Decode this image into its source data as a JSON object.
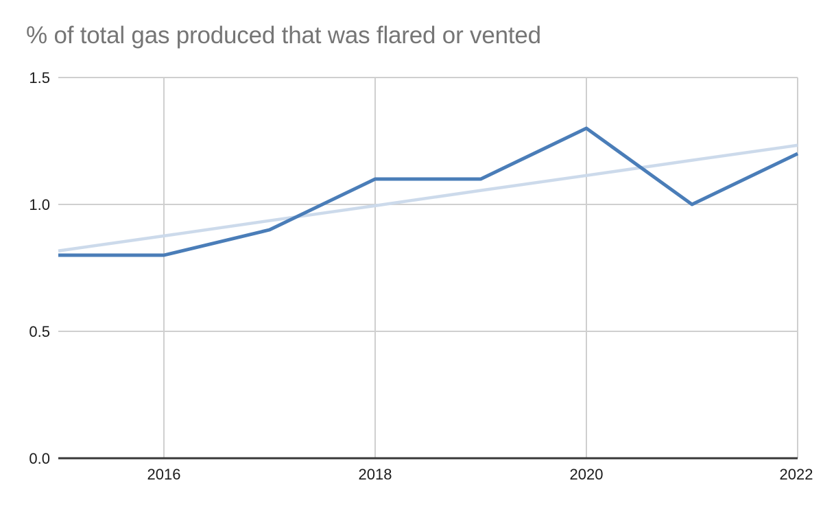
{
  "page": {
    "background": "#ffffff"
  },
  "chart": {
    "title": "% of total gas produced that was flared or vented"
  },
  "chart_data": {
    "type": "line",
    "title": "% of total gas produced that was flared or vented",
    "x": [
      2015,
      2016,
      2017,
      2018,
      2019,
      2020,
      2021,
      2022
    ],
    "series": [
      {
        "name": "% of total gas flared or vented",
        "role": "data",
        "color": "#4a7db8",
        "values": [
          0.8,
          0.8,
          0.9,
          1.1,
          1.1,
          1.3,
          1.0,
          1.2
        ]
      },
      {
        "name": "linear trend",
        "role": "trend",
        "color": "#ccdaeb",
        "values": [
          0.817,
          0.876,
          0.936,
          0.995,
          1.055,
          1.114,
          1.174,
          1.233
        ]
      }
    ],
    "xlabel": "",
    "ylabel": "",
    "xlim": [
      2015,
      2022
    ],
    "ylim": [
      0.0,
      1.5
    ],
    "x_tick_labels": [
      "2016",
      "2018",
      "2020",
      "2022"
    ],
    "x_tick_values": [
      2016,
      2018,
      2020,
      2022
    ],
    "y_tick_labels": [
      "0.0",
      "0.5",
      "1.0",
      "1.5"
    ],
    "y_tick_values": [
      0.0,
      0.5,
      1.0,
      1.5
    ],
    "grid": true,
    "legend": false,
    "colors": {
      "title_text": "#757575",
      "tick_text": "#1b1b1b",
      "gridline": "#cfcfcf",
      "axis_line": "#383838"
    }
  }
}
